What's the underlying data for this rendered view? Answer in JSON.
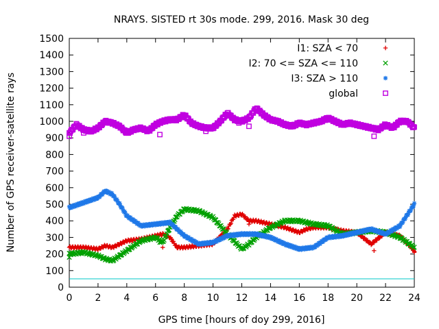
{
  "chart_data": {
    "type": "scatter",
    "title": "NRAYS. SISTED rt 30s mode. 299, 2016. Mask 30 deg",
    "xlabel": "GPS time [hours of doy 299, 2016]",
    "ylabel": "Number of GPS receiver-satellite rays",
    "xlim": [
      0,
      24
    ],
    "ylim": [
      0,
      1500
    ],
    "xticks": [
      "0",
      "2",
      "4",
      "6",
      "8",
      "10",
      "12",
      "14",
      "16",
      "18",
      "20",
      "22",
      "24"
    ],
    "yticks": [
      "0",
      "100",
      "200",
      "300",
      "400",
      "500",
      "600",
      "700",
      "800",
      "900",
      "1000",
      "1100",
      "1200",
      "1300",
      "1400",
      "1500"
    ],
    "legend_position": "top-right",
    "reference_line": {
      "y": 50,
      "color": "#00c8c8"
    },
    "series": [
      {
        "name": "I1: SZA < 70",
        "marker": "+",
        "color": "#e00000",
        "x": [
          0,
          1,
          2,
          2.5,
          3,
          4,
          5,
          5.5,
          6,
          6.5,
          7,
          7.5,
          8,
          9,
          10,
          11,
          11.5,
          12,
          12.5,
          13,
          14,
          15,
          16,
          16.5,
          17,
          18,
          19,
          20,
          21,
          22,
          23,
          24
        ],
        "y": [
          240,
          240,
          230,
          250,
          240,
          280,
          290,
          300,
          310,
          320,
          300,
          240,
          240,
          250,
          260,
          350,
          430,
          440,
          400,
          400,
          380,
          360,
          330,
          350,
          360,
          360,
          340,
          330,
          260,
          330,
          310,
          220
        ],
        "outliers_x": [
          6.5,
          12.5,
          21.2,
          24
        ],
        "outliers_y": [
          240,
          380,
          220,
          210
        ]
      },
      {
        "name": "I2: 70 <= SZA <= 110",
        "marker": "x",
        "color": "#00a000",
        "x": [
          0,
          1,
          2,
          2.5,
          3,
          3.5,
          4,
          5,
          6,
          6.5,
          7,
          7.5,
          8,
          9,
          10,
          11,
          12,
          12.5,
          13,
          14,
          15,
          16,
          17,
          18,
          19,
          20,
          21,
          22,
          23,
          24
        ],
        "y": [
          200,
          210,
          190,
          170,
          160,
          190,
          220,
          280,
          300,
          270,
          360,
          430,
          470,
          460,
          420,
          320,
          230,
          260,
          300,
          360,
          400,
          400,
          380,
          370,
          320,
          330,
          340,
          330,
          300,
          240
        ],
        "outliers_x": [
          0,
          6.3
        ],
        "outliers_y": [
          180,
          270
        ]
      },
      {
        "name": "I3: SZA > 110",
        "marker": "*",
        "color": "#1f78e8",
        "x": [
          0,
          1,
          2,
          2.5,
          3,
          3.5,
          4,
          5,
          6,
          7,
          8,
          9,
          10,
          11,
          12,
          13,
          14,
          15,
          16,
          17,
          18,
          19,
          20,
          21,
          22,
          23,
          24
        ],
        "y": [
          480,
          510,
          540,
          580,
          560,
          500,
          430,
          370,
          380,
          390,
          310,
          260,
          270,
          310,
          320,
          320,
          300,
          260,
          230,
          240,
          300,
          310,
          330,
          350,
          320,
          370,
          500
        ],
        "outliers_x": [],
        "outliers_y": []
      },
      {
        "name": "global",
        "marker": "square",
        "color": "#c000e0",
        "x": [
          0,
          0.5,
          1,
          1.5,
          2,
          2.5,
          3,
          3.5,
          4,
          4.5,
          5,
          5.5,
          6,
          6.5,
          7,
          7.5,
          8,
          8.5,
          9,
          9.5,
          10,
          10.5,
          11,
          11.5,
          12,
          12.5,
          13,
          13.5,
          14,
          14.5,
          15,
          15.5,
          16,
          16.5,
          17,
          17.5,
          18,
          18.5,
          19,
          19.5,
          20,
          20.5,
          21,
          21.5,
          22,
          22.5,
          23,
          23.5,
          24
        ],
        "y": [
          930,
          980,
          950,
          940,
          960,
          1000,
          990,
          970,
          930,
          950,
          960,
          940,
          980,
          1000,
          1010,
          1010,
          1040,
          990,
          970,
          960,
          960,
          1000,
          1050,
          1010,
          1000,
          1020,
          1080,
          1040,
          1010,
          1000,
          980,
          970,
          990,
          980,
          990,
          1000,
          1020,
          1000,
          980,
          990,
          980,
          970,
          960,
          950,
          980,
          960,
          1000,
          1000,
          960
        ],
        "outliers_x": [
          0,
          1,
          6.3,
          9.5,
          11.8,
          12.5,
          21.2
        ],
        "outliers_y": [
          910,
          930,
          920,
          940,
          990,
          970,
          910
        ]
      }
    ]
  }
}
